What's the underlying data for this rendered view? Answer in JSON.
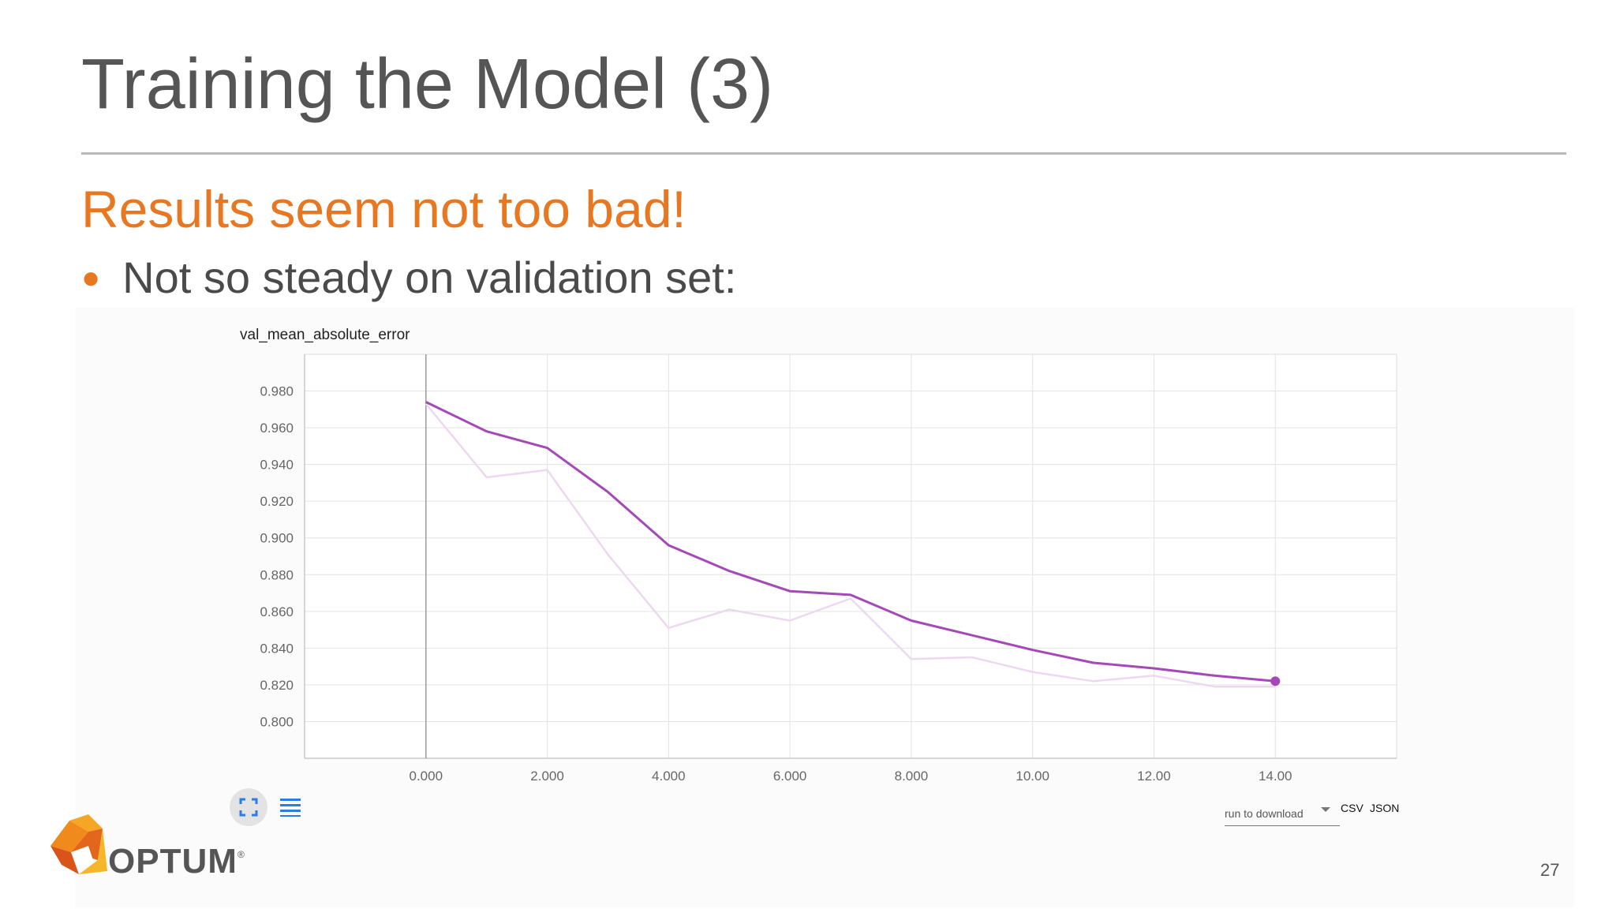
{
  "slide": {
    "title": "Training the Model (3)",
    "subtitle": "Results seem not too bad!",
    "bullet": "Not so steady on validation set:",
    "page_number": "27",
    "logo_text": "OPTUM",
    "logo_mark": "®"
  },
  "colors": {
    "accent": "#e87722",
    "smoothed_line": "#a548b8",
    "raw_line": "#ecd8ef",
    "title_text": "#555555"
  },
  "chart_data": {
    "type": "line",
    "title": "val_mean_absolute_error",
    "xlabel": "",
    "ylabel": "",
    "xlim": [
      -2,
      16
    ],
    "ylim": [
      0.78,
      1.0
    ],
    "xticks": [
      0,
      2,
      4,
      6,
      8,
      10,
      12,
      14
    ],
    "xtick_labels": [
      "0.000",
      "2.000",
      "4.000",
      "6.000",
      "8.000",
      "10.00",
      "12.00",
      "14.00"
    ],
    "yticks": [
      0.8,
      0.82,
      0.84,
      0.86,
      0.88,
      0.9,
      0.92,
      0.94,
      0.96,
      0.98
    ],
    "ytick_labels": [
      "0.800",
      "0.820",
      "0.840",
      "0.860",
      "0.880",
      "0.900",
      "0.920",
      "0.940",
      "0.960",
      "0.980"
    ],
    "grid": true,
    "legend": "none",
    "series": [
      {
        "role": "raw",
        "color": "#ecd8ef",
        "x": [
          0,
          1,
          2,
          3,
          4,
          5,
          6,
          7,
          8,
          9,
          10,
          11,
          12,
          13,
          14
        ],
        "y": [
          0.973,
          0.933,
          0.937,
          0.891,
          0.851,
          0.861,
          0.855,
          0.867,
          0.834,
          0.835,
          0.827,
          0.822,
          0.825,
          0.819,
          0.819
        ]
      },
      {
        "role": "smoothed",
        "color": "#a548b8",
        "x": [
          0,
          1,
          2,
          3,
          4,
          5,
          6,
          7,
          8,
          9,
          10,
          11,
          12,
          13,
          14
        ],
        "y": [
          0.974,
          0.958,
          0.949,
          0.925,
          0.896,
          0.882,
          0.871,
          0.869,
          0.855,
          0.847,
          0.839,
          0.832,
          0.829,
          0.825,
          0.822
        ]
      }
    ]
  },
  "toolbar": {
    "expand_icon": "expand-icon",
    "list_icon": "list-icon",
    "download_label": "run to download",
    "dropdown_icon": "caret-down-icon",
    "csv_label": "CSV",
    "json_label": "JSON"
  }
}
